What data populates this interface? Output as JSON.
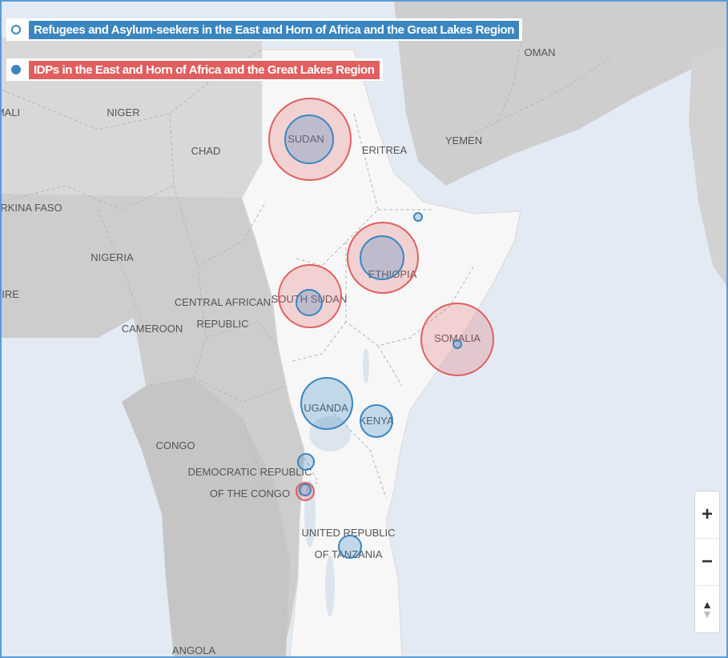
{
  "legend": {
    "refugees": {
      "label": "Refugees and Asylum-seekers in the East and Horn of Africa and the Great Lakes Region",
      "color": "#3a86c0"
    },
    "idps": {
      "label": "IDPs in the East and Horn of Africa and the Great Lakes Region",
      "color": "#e05f5f"
    }
  },
  "country_labels": {
    "oman": "OMAN",
    "mali": "MALI",
    "niger": "NIGER",
    "chad": "CHAD",
    "sudan": "SUDAN",
    "eritrea": "ERITREA",
    "yemen": "YEMEN",
    "burkina": "BURKINA FASO",
    "nigeria": "NIGERIA",
    "ethiopia": "ETHIOPIA",
    "ivoire": "D'IVOIRE",
    "south_sudan": "SOUTH SUDAN",
    "car_1": "CENTRAL AFRICAN",
    "car_2": "REPUBLIC",
    "cameroon": "CAMEROON",
    "somalia": "SOMALIA",
    "uganda": "UGANDA",
    "kenya": "KENYA",
    "congo": "CONGO",
    "drc_1": "DEMOCRATIC REPUBLIC",
    "drc_2": "OF THE CONGO",
    "tanzania_1": "UNITED REPUBLIC",
    "tanzania_2": "OF TANZANIA",
    "angola": "ANGOLA"
  },
  "zoom": {
    "in_symbol": "+",
    "out_symbol": "−",
    "reset_symbol": "▲"
  },
  "colors": {
    "water": "#e4eaf3",
    "land": "#cacaca",
    "focus_region": "#f7f7f7",
    "refugee_stroke": "#3a86c0",
    "idp_stroke": "#e05f5f"
  }
}
